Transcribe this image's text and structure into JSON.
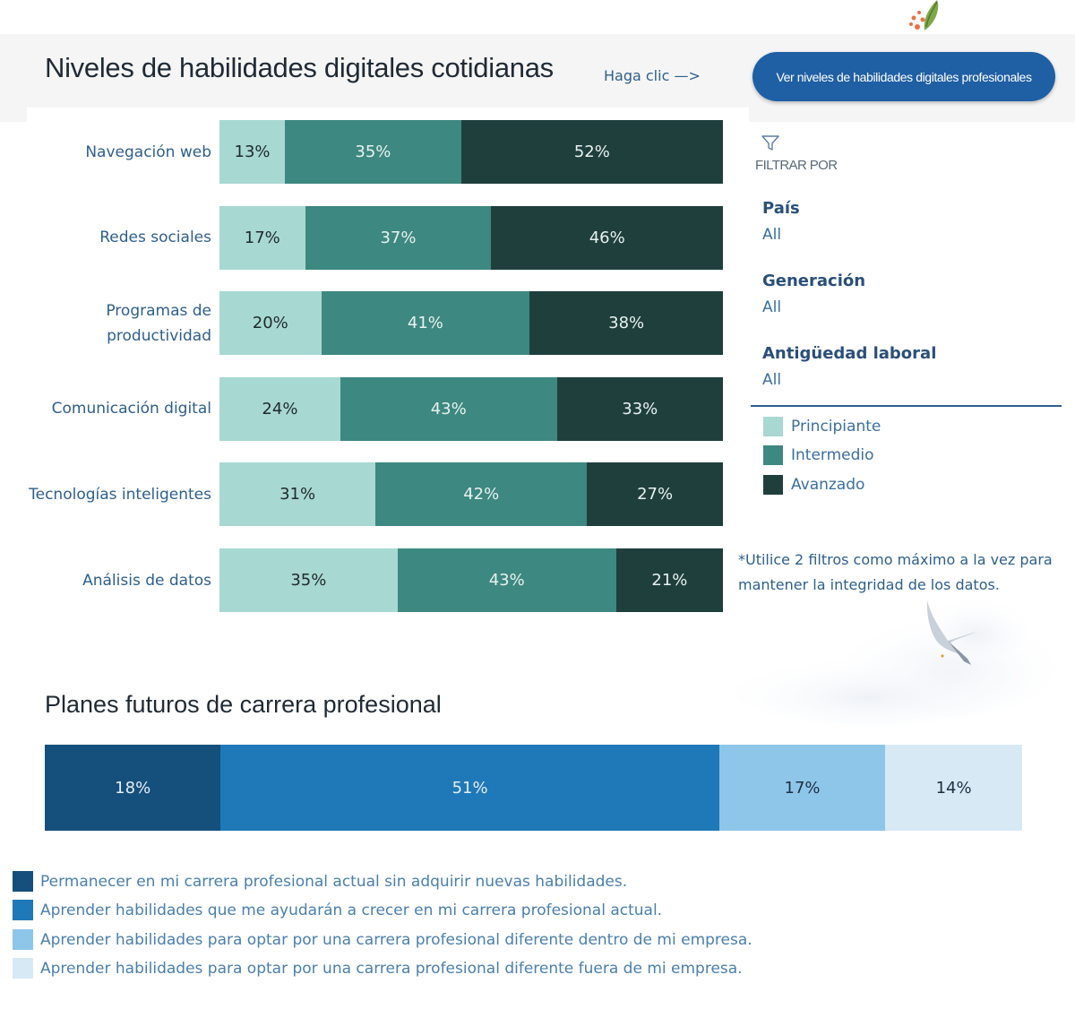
{
  "header": {
    "title": "Niveles de habilidades digitales cotidianas",
    "haga_clic": "Haga clic —>",
    "button_label": "Ver niveles de habilidades digitales profesionales"
  },
  "filters": {
    "heading": "FILTRAR POR",
    "items": [
      {
        "name": "País",
        "value": "All"
      },
      {
        "name": "Generación",
        "value": "All"
      },
      {
        "name": "Antigüedad laboral",
        "value": "All"
      }
    ]
  },
  "legend": {
    "items": [
      {
        "label": "Principiante",
        "color": "#a8d8d2"
      },
      {
        "label": "Intermedio",
        "color": "#3d8880"
      },
      {
        "label": "Avanzado",
        "color": "#1f3f3d"
      }
    ]
  },
  "note": "*Utilice 2 filtros como máximo a la vez para mantener la integridad de los datos.",
  "career": {
    "title": "Planes futuros de carrera profesional",
    "legend": [
      "Permanecer en mi carrera profesional actual sin adquirir nuevas habilidades.",
      "Aprender habilidades que me ayudarán a crecer en mi carrera profesional actual.",
      "Aprender habilidades para optar por una carrera profesional diferente dentro de mi empresa.",
      "Aprender habilidades para optar por una carrera profesional diferente fuera de mi empresa."
    ]
  },
  "chart_data": [
    {
      "type": "bar",
      "orientation": "horizontal",
      "stacked": true,
      "title": "Niveles de habilidades digitales cotidianas",
      "categories": [
        [
          "Navegación web"
        ],
        [
          "Redes sociales"
        ],
        [
          "Programas de",
          "productividad"
        ],
        [
          "Comunicación digital"
        ],
        [
          "Tecnologías inteligentes"
        ],
        [
          "Análisis de datos"
        ]
      ],
      "series": [
        {
          "name": "Principiante",
          "color": "#a8d8d2",
          "text_color": "#1e2a2a",
          "values": [
            13,
            17,
            20,
            24,
            31,
            35
          ]
        },
        {
          "name": "Intermedio",
          "color": "#3d8880",
          "text_color": "#e8f2f0",
          "values": [
            35,
            37,
            41,
            43,
            42,
            43
          ]
        },
        {
          "name": "Avanzado",
          "color": "#1f3f3d",
          "text_color": "#e8f2f0",
          "values": [
            52,
            46,
            38,
            33,
            27,
            21
          ]
        }
      ],
      "labels": [
        [
          "13%",
          "35%",
          "52%"
        ],
        [
          "17%",
          "37%",
          "46%"
        ],
        [
          "20%",
          "41%",
          "38%"
        ],
        [
          "24%",
          "43%",
          "33%"
        ],
        [
          "31%",
          "42%",
          "27%"
        ],
        [
          "35%",
          "43%",
          "21%"
        ]
      ],
      "legend": "right"
    },
    {
      "type": "bar",
      "orientation": "horizontal",
      "stacked": true,
      "title": "Planes futuros de carrera profesional",
      "series": [
        {
          "name": "Permanecer en mi carrera profesional actual sin adquirir nuevas habilidades.",
          "color": "#154f7c",
          "text_color": "#e6eef6",
          "value": 18,
          "label": "18%"
        },
        {
          "name": "Aprender habilidades que me ayudarán a crecer en mi carrera profesional actual.",
          "color": "#1f78b8",
          "text_color": "#e6eef6",
          "value": 51,
          "label": "51%"
        },
        {
          "name": "Aprender habilidades para optar por una carrera profesional diferente dentro de mi empresa.",
          "color": "#8ec6ea",
          "text_color": "#1e2f40",
          "value": 17,
          "label": "17%"
        },
        {
          "name": "Aprender habilidades para optar por una carrera profesional diferente fuera de mi empresa.",
          "color": "#d8e9f6",
          "text_color": "#1e2f40",
          "value": 14,
          "label": "14%"
        }
      ],
      "legend": "bottom"
    }
  ]
}
